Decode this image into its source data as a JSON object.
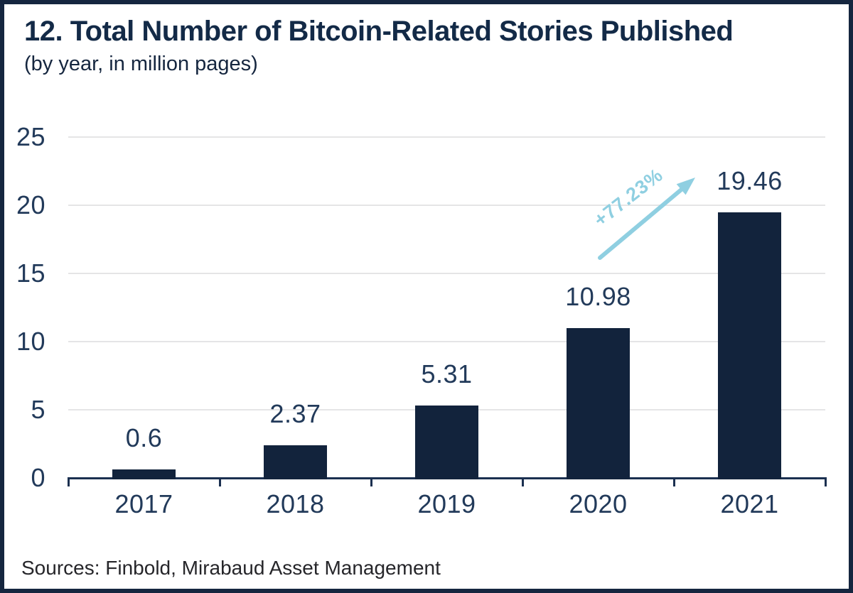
{
  "header": {
    "title": "12. Total Number of Bitcoin-Related Stories Published",
    "subtitle": "(by year, in million pages)"
  },
  "chart_data": {
    "type": "bar",
    "categories": [
      "2017",
      "2018",
      "2019",
      "2020",
      "2021"
    ],
    "values": [
      0.6,
      2.37,
      5.31,
      10.98,
      19.46
    ],
    "data_labels": [
      "0.6",
      "2.37",
      "5.31",
      "10.98",
      "19.46"
    ],
    "title": "12. Total Number of Bitcoin-Related Stories Published",
    "subtitle": "(by year, in million pages)",
    "xlabel": "",
    "ylabel": "",
    "ylim": [
      0,
      25
    ],
    "yticks": [
      0,
      5,
      10,
      15,
      20,
      25
    ],
    "grid": "horizontal",
    "legend": "none",
    "annotation": {
      "label": "+77.23%",
      "meaning": "growth from 2020 to 2021",
      "arrow_direction": "up-right"
    }
  },
  "footer": {
    "sources": "Sources: Finbold, Mirabaud Asset Management"
  },
  "colors": {
    "bar": "#12233c",
    "title_text": "#132a47",
    "axis_text": "#223a5a",
    "axis_line": "#1b3050",
    "gridline": "#e5e5e6",
    "arrow": "#8fcfe1",
    "border": "#15263f",
    "sources_text": "#26262a",
    "background": "#ffffff"
  }
}
